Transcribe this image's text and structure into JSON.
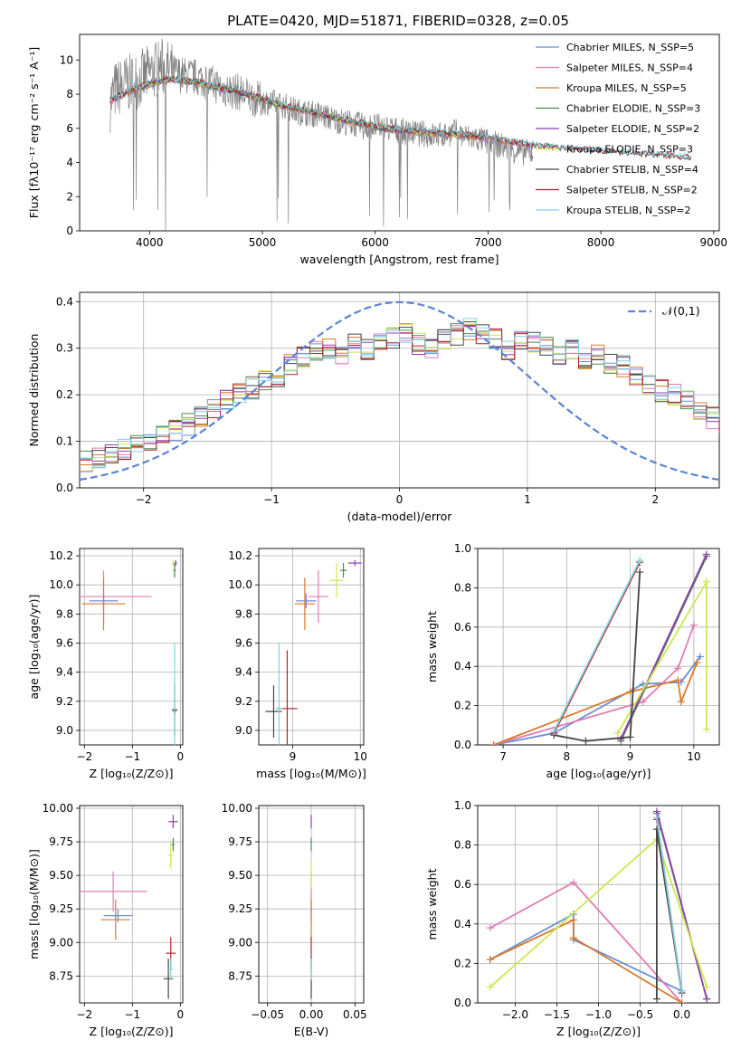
{
  "figure_title": "PLATE=0420, MJD=51871, FIBERID=0328, z=0.05",
  "colors": [
    "#6a8fd8",
    "#e27cb5",
    "#d97a2b",
    "#4f8a4f",
    "#8e3fb0",
    "#cde84e",
    "#454545",
    "#b0262a",
    "#7fd3e0"
  ],
  "chart_data": [
    {
      "id": "spectrum",
      "type": "line",
      "xlabel": "wavelength [Angstrom, rest frame]",
      "ylabel": "Flux [fλ10⁻¹⁷ erg cm⁻² s⁻¹ A⁻¹]",
      "xlim": [
        3380,
        9050
      ],
      "ylim": [
        0,
        11.5
      ],
      "xticks": [
        4000,
        5000,
        6000,
        7000,
        8000,
        9000
      ],
      "yticks": [
        0,
        2,
        4,
        6,
        8,
        10
      ],
      "grid": false,
      "legend_position": "top-right",
      "observed_color": "#808080",
      "observed": {
        "x": [
          3650,
          3700,
          3800,
          3900,
          4000,
          4100,
          4200,
          4300,
          4400,
          4500,
          4600,
          4700,
          4800,
          4900,
          5000,
          5100,
          5200,
          5300,
          5400,
          5500,
          5600,
          5700,
          5800,
          5900,
          6000,
          6100,
          6200,
          6300,
          6400,
          6500,
          6600,
          6700,
          6800,
          6900,
          7000,
          7100,
          7200,
          7300,
          7400
        ],
        "y": [
          7.5,
          8.3,
          8.6,
          8.8,
          9.2,
          9.6,
          9.3,
          9.1,
          9.0,
          8.8,
          8.5,
          8.2,
          8.1,
          7.8,
          7.6,
          7.5,
          7.3,
          7.0,
          6.9,
          6.8,
          6.6,
          6.4,
          6.3,
          6.1,
          6.1,
          6.0,
          5.9,
          5.7,
          5.7,
          5.6,
          5.6,
          5.8,
          5.5,
          5.4,
          5.2,
          5.0,
          4.8,
          4.6,
          4.6
        ]
      },
      "series": [
        {
          "name": "Chabrier MILES, N_SSP=5",
          "range": [
            3650,
            7400
          ]
        },
        {
          "name": "Salpeter MILES, N_SSP=4",
          "range": [
            3650,
            7400
          ]
        },
        {
          "name": "Kroupa MILES, N_SSP=5",
          "range": [
            3650,
            7400
          ]
        },
        {
          "name": "Chabrier ELODIE, N_SSP=3",
          "range": [
            3900,
            6800
          ]
        },
        {
          "name": "Salpeter ELODIE, N_SSP=2",
          "range": [
            3900,
            6800
          ]
        },
        {
          "name": "Kroupa ELODIE, N_SSP=3",
          "range": [
            3900,
            6800
          ]
        },
        {
          "name": "Chabrier STELIB, N_SSP=4",
          "range": [
            3650,
            8800
          ]
        },
        {
          "name": "Salpeter STELIB, N_SSP=2",
          "range": [
            3650,
            8800
          ]
        },
        {
          "name": "Kroupa STELIB, N_SSP=2",
          "range": [
            3650,
            8800
          ]
        }
      ],
      "model": {
        "x": [
          3650,
          3800,
          4000,
          4200,
          4400,
          4600,
          4800,
          5000,
          5200,
          5400,
          5600,
          5800,
          6000,
          6200,
          6400,
          6600,
          6800,
          7000,
          7200,
          7400,
          7600,
          7800,
          8000,
          8200,
          8400,
          8600,
          8800
        ],
        "y": [
          7.6,
          8.1,
          8.6,
          8.9,
          8.7,
          8.4,
          8.1,
          7.7,
          7.3,
          7.0,
          6.7,
          6.4,
          6.1,
          5.9,
          5.8,
          5.7,
          5.6,
          5.4,
          5.2,
          5.0,
          4.85,
          4.75,
          4.65,
          4.55,
          4.45,
          4.35,
          4.25
        ]
      }
    },
    {
      "id": "residuals",
      "type": "line",
      "xlabel": "(data-model)/error",
      "ylabel": "Normed distribution",
      "xlim": [
        -2.5,
        2.5
      ],
      "ylim": [
        0,
        0.42
      ],
      "xticks": [
        -2,
        -1,
        0,
        1,
        2
      ],
      "yticks": [
        0.0,
        0.1,
        0.2,
        0.3,
        0.4
      ],
      "grid": true,
      "legend_position": "top-right",
      "legend": "𝒩(0,1)",
      "gaussian_color": "#5b84d6",
      "bin_width": 0.1,
      "bin_start": -2.5,
      "histogram_mean": [
        0.06,
        0.065,
        0.07,
        0.08,
        0.09,
        0.1,
        0.115,
        0.125,
        0.135,
        0.15,
        0.17,
        0.19,
        0.2,
        0.215,
        0.23,
        0.24,
        0.265,
        0.28,
        0.29,
        0.3,
        0.28,
        0.31,
        0.3,
        0.31,
        0.32,
        0.33,
        0.31,
        0.3,
        0.32,
        0.33,
        0.34,
        0.33,
        0.32,
        0.3,
        0.32,
        0.31,
        0.3,
        0.29,
        0.3,
        0.28,
        0.29,
        0.27,
        0.26,
        0.24,
        0.22,
        0.21,
        0.2,
        0.19,
        0.17,
        0.15,
        0.14,
        0.125,
        0.115,
        0.1,
        0.09,
        0.08,
        0.075,
        0.07,
        0.065,
        0.06,
        0.055,
        0.05,
        0.045,
        0.04,
        0.035,
        0.04,
        0.035,
        0.03,
        0.035,
        0.03
      ]
    },
    {
      "id": "age-vs-Z",
      "type": "scatter",
      "xlabel": "Z [log₁₀(Z/Z⊙)]",
      "ylabel": "age  [log₁₀(age/yr)]",
      "xlim": [
        -2.1,
        0.05
      ],
      "ylim": [
        8.9,
        10.25
      ],
      "xticks": [
        -2,
        -1,
        0
      ],
      "yticks": [
        9.0,
        9.2,
        9.4,
        9.6,
        9.8,
        10.0,
        10.2
      ],
      "points": [
        {
          "x": -1.6,
          "y": 9.89,
          "xerr": 0.3,
          "yerr": 0.05
        },
        {
          "x": -1.6,
          "y": 9.92,
          "xerr": 1.0,
          "yerr": 0.18
        },
        {
          "x": -1.6,
          "y": 9.87,
          "xerr": 0.45,
          "yerr": 0.18
        },
        {
          "x": -0.12,
          "y": 10.1,
          "xerr": 0.03,
          "yerr": 0.05
        },
        {
          "x": -0.1,
          "y": 10.15,
          "xerr": 0.03,
          "yerr": 0.02
        },
        {
          "x": -0.15,
          "y": 10.15,
          "xerr": 0.03,
          "yerr": 0.02
        },
        {
          "x": -0.12,
          "y": 9.14,
          "xerr": 0.06,
          "yerr": 0.18
        },
        {
          "x": -0.12,
          "y": 9.13,
          "xerr": 0.03,
          "yerr": 0.02
        },
        {
          "x": -0.12,
          "y": 9.15,
          "xerr": 0.03,
          "yerr": 0.45
        }
      ]
    },
    {
      "id": "age-vs-mass",
      "type": "scatter",
      "xlabel": "mass [log₁₀(M/M⊙)]",
      "ylabel": "",
      "xlim": [
        8.5,
        10.05
      ],
      "ylim": [
        8.9,
        10.25
      ],
      "xticks": [
        9,
        10
      ],
      "yticks": [
        9.0,
        9.2,
        9.4,
        9.6,
        9.8,
        10.0,
        10.2
      ],
      "points": [
        {
          "x": 9.2,
          "y": 9.89,
          "xerr": 0.15,
          "yerr": 0.05
        },
        {
          "x": 9.38,
          "y": 9.92,
          "xerr": 0.15,
          "yerr": 0.18
        },
        {
          "x": 9.18,
          "y": 9.87,
          "xerr": 0.15,
          "yerr": 0.18
        },
        {
          "x": 9.75,
          "y": 10.1,
          "xerr": 0.05,
          "yerr": 0.05
        },
        {
          "x": 9.92,
          "y": 10.15,
          "xerr": 0.1,
          "yerr": 0.02
        },
        {
          "x": 9.65,
          "y": 10.03,
          "xerr": 0.1,
          "yerr": 0.12
        },
        {
          "x": 8.72,
          "y": 9.13,
          "xerr": 0.12,
          "yerr": 0.18
        },
        {
          "x": 8.92,
          "y": 9.15,
          "xerr": 0.15,
          "yerr": 0.4
        },
        {
          "x": 8.8,
          "y": 9.15,
          "xerr": 0.05,
          "yerr": 0.45
        }
      ]
    },
    {
      "id": "massweight-vs-age",
      "type": "line",
      "xlabel": "age  [log₁₀(age/yr)]",
      "ylabel": "mass weight",
      "xlim": [
        6.6,
        10.4
      ],
      "ylim": [
        0,
        1.0
      ],
      "xticks": [
        7,
        8,
        9,
        10
      ],
      "yticks": [
        0.0,
        0.2,
        0.4,
        0.6,
        0.8,
        1.0
      ],
      "grid": true,
      "series": [
        {
          "x": [
            6.85,
            7.8,
            9.2,
            9.8,
            10.1
          ],
          "y": [
            0.0,
            0.06,
            0.31,
            0.32,
            0.45
          ]
        },
        {
          "x": [
            6.85,
            9.2,
            9.75,
            10.0
          ],
          "y": [
            0.0,
            0.22,
            0.39,
            0.61
          ]
        },
        {
          "x": [
            6.85,
            9.0,
            9.75,
            9.8,
            10.05
          ],
          "y": [
            0.0,
            0.27,
            0.33,
            0.22,
            0.42
          ]
        },
        {
          "x": [
            8.85,
            10.2
          ],
          "y": [
            0.02,
            0.96
          ]
        },
        {
          "x": [
            8.85,
            10.2
          ],
          "y": [
            0.03,
            0.97
          ]
        },
        {
          "x": [
            8.8,
            10.2,
            10.2
          ],
          "y": [
            0.06,
            0.83,
            0.08
          ]
        },
        {
          "x": [
            7.8,
            8.3,
            9.0,
            9.15
          ],
          "y": [
            0.05,
            0.02,
            0.04,
            0.88
          ]
        },
        {
          "x": [
            7.8,
            9.15
          ],
          "y": [
            0.06,
            0.93
          ]
        },
        {
          "x": [
            7.8,
            9.15
          ],
          "y": [
            0.07,
            0.94
          ]
        }
      ]
    },
    {
      "id": "mass-vs-Z",
      "type": "scatter",
      "xlabel": "Z [log₁₀(Z/Z⊙)]",
      "ylabel": "mass [log₁₀(M/M⊙)]",
      "xlim": [
        -2.1,
        0.05
      ],
      "ylim": [
        8.55,
        10.02
      ],
      "xticks": [
        -2,
        -1,
        0
      ],
      "yticks": [
        8.75,
        9.0,
        9.25,
        9.5,
        9.75,
        10.0
      ],
      "points": [
        {
          "x": -1.3,
          "y": 9.2,
          "xerr": 0.3,
          "yerr": 0.05
        },
        {
          "x": -1.4,
          "y": 9.38,
          "xerr": 0.7,
          "yerr": 0.15
        },
        {
          "x": -1.35,
          "y": 9.17,
          "xerr": 0.3,
          "yerr": 0.15
        },
        {
          "x": -0.15,
          "y": 9.73,
          "xerr": 0.03,
          "yerr": 0.05
        },
        {
          "x": -0.15,
          "y": 9.9,
          "xerr": 0.1,
          "yerr": 0.05
        },
        {
          "x": -0.2,
          "y": 9.65,
          "xerr": 0.05,
          "yerr": 0.1
        },
        {
          "x": -0.25,
          "y": 8.73,
          "xerr": 0.1,
          "yerr": 0.15
        },
        {
          "x": -0.2,
          "y": 8.92,
          "xerr": 0.1,
          "yerr": 0.12
        },
        {
          "x": -0.2,
          "y": 8.8,
          "xerr": 0.05,
          "yerr": 0.08
        }
      ]
    },
    {
      "id": "mass-vs-ebv",
      "type": "scatter",
      "xlabel": "E(B-V)",
      "ylabel": "",
      "xlim": [
        -0.06,
        0.06
      ],
      "ylim": [
        8.55,
        10.02
      ],
      "xticks": [
        -0.05,
        0.0,
        0.05
      ],
      "yticks": [
        8.75,
        9.0,
        9.25,
        9.5,
        9.75,
        10.0
      ],
      "points": [
        {
          "x": 0,
          "y": 9.2,
          "yerr": 0.05
        },
        {
          "x": 0,
          "y": 9.38,
          "yerr": 0.15
        },
        {
          "x": 0,
          "y": 9.17,
          "yerr": 0.15
        },
        {
          "x": 0,
          "y": 9.73,
          "yerr": 0.05
        },
        {
          "x": 0,
          "y": 9.9,
          "yerr": 0.05
        },
        {
          "x": 0,
          "y": 9.5,
          "yerr": 0.1
        },
        {
          "x": 0,
          "y": 8.73,
          "yerr": 0.15
        },
        {
          "x": 0,
          "y": 8.92,
          "yerr": 0.12
        },
        {
          "x": 0,
          "y": 8.8,
          "yerr": 0.08
        }
      ]
    },
    {
      "id": "massweight-vs-Z",
      "type": "line",
      "xlabel": "Z [log₁₀(Z/Z⊙)]",
      "ylabel": "mass weight",
      "xlim": [
        -2.45,
        0.45
      ],
      "ylim": [
        0,
        1.0
      ],
      "xticks": [
        -2.0,
        -1.5,
        -1.0,
        -0.5,
        0.0
      ],
      "yticks": [
        0.0,
        0.2,
        0.4,
        0.6,
        0.8,
        1.0
      ],
      "grid": true,
      "series": [
        {
          "x": [
            -2.3,
            -1.3,
            -1.3,
            0.0
          ],
          "y": [
            0.22,
            0.45,
            0.32,
            0.06
          ]
        },
        {
          "x": [
            -2.3,
            -1.3,
            0.0
          ],
          "y": [
            0.38,
            0.61,
            0.0
          ]
        },
        {
          "x": [
            -2.3,
            -1.3,
            -1.3,
            0.0
          ],
          "y": [
            0.22,
            0.42,
            0.33,
            0.0
          ]
        },
        {
          "x": [
            -0.3,
            0.3
          ],
          "y": [
            0.96,
            0.02
          ]
        },
        {
          "x": [
            -0.3,
            0.3
          ],
          "y": [
            0.97,
            0.02
          ]
        },
        {
          "x": [
            -2.3,
            -0.3,
            0.3
          ],
          "y": [
            0.08,
            0.83,
            0.08
          ]
        },
        {
          "x": [
            -0.3,
            -0.3,
            0.0
          ],
          "y": [
            0.02,
            0.88,
            0.05
          ]
        },
        {
          "x": [
            -0.3,
            0.0
          ],
          "y": [
            0.93,
            0.06
          ]
        },
        {
          "x": [
            -0.3,
            0.0
          ],
          "y": [
            0.94,
            0.06
          ]
        }
      ]
    }
  ]
}
